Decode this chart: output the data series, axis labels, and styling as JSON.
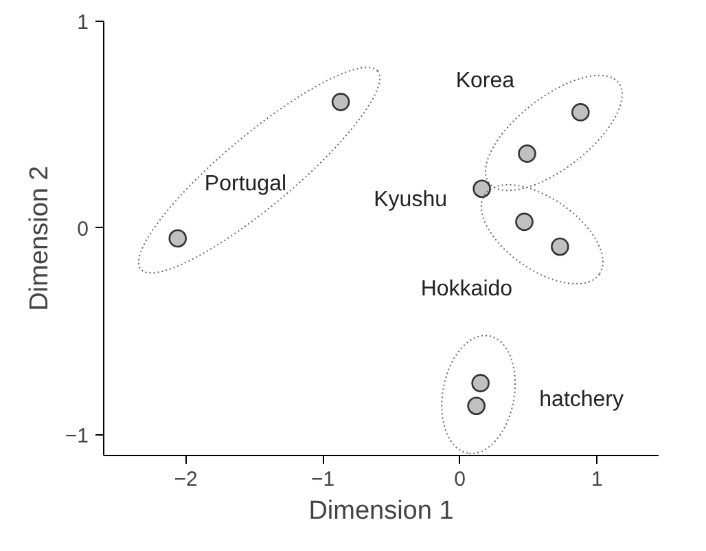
{
  "chart_data": {
    "type": "scatter",
    "xlabel": "Dimension 1",
    "ylabel": "Dimension 2",
    "xlim": [
      -2.6,
      1.45
    ],
    "ylim": [
      -1.1,
      1.0
    ],
    "xticks": [
      -2,
      -1,
      0,
      1
    ],
    "yticks": [
      -1,
      0,
      1
    ],
    "grid": false,
    "marker": "circle",
    "series": [
      {
        "name": "Portugal",
        "color": "#c0c0c0",
        "x": [
          -2.06,
          -0.87
        ],
        "values": [
          -0.05,
          0.61
        ]
      },
      {
        "name": "Korea",
        "color": "#c0c0c0",
        "x": [
          0.88,
          0.49
        ],
        "values": [
          0.56,
          0.36
        ]
      },
      {
        "name": "Kyushu",
        "color": "#c0c0c0",
        "x": [
          0.16
        ],
        "values": [
          0.19
        ]
      },
      {
        "name": "Hokkaido",
        "color": "#c0c0c0",
        "x": [
          0.47,
          0.73
        ],
        "values": [
          0.03,
          -0.09
        ]
      },
      {
        "name": "hatchery",
        "color": "#c0c0c0",
        "x": [
          0.15,
          0.12
        ],
        "values": [
          -0.75,
          -0.86
        ]
      }
    ]
  }
}
